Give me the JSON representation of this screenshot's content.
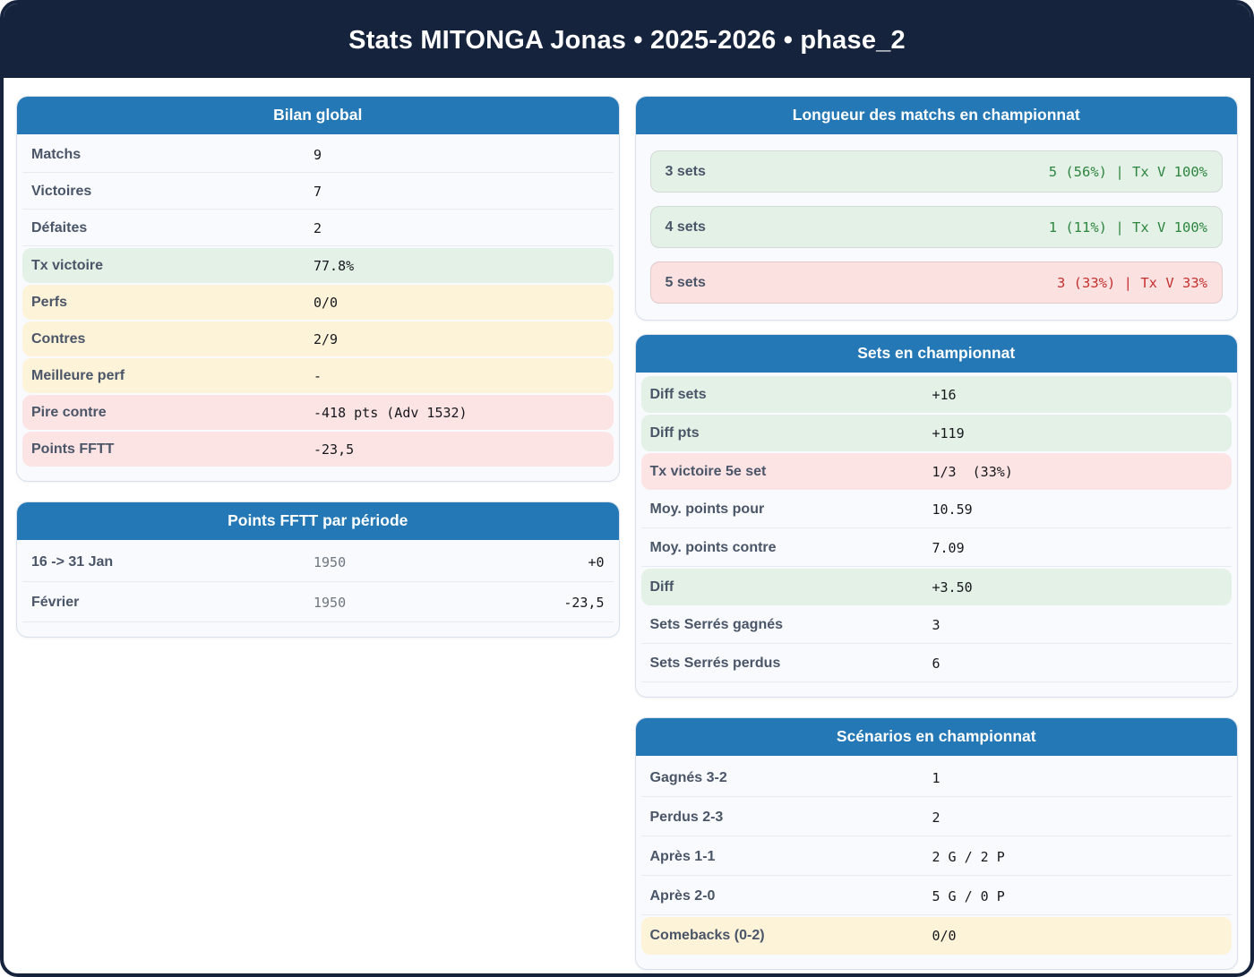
{
  "page_title": "Stats MITONGA Jonas • 2025-2026 • phase_2",
  "colors": {
    "frame_navy": "#16233c",
    "header_blue": "#2478b5",
    "green_bg": "#e3f1e6",
    "green_text": "#2e8540",
    "yellow_bg": "#fdf3d9",
    "pink_bg": "#fce4e4",
    "red_text": "#c53030"
  },
  "cards": {
    "bilan": {
      "title": "Bilan global",
      "rows": [
        {
          "label": "Matchs",
          "value": "9"
        },
        {
          "label": "Victoires",
          "value": "7"
        },
        {
          "label": "Défaites",
          "value": "2"
        },
        {
          "label": "Tx victoire",
          "value": "77.8%"
        },
        {
          "label": "Perfs",
          "value": "0/0"
        },
        {
          "label": "Contres",
          "value": "2/9"
        },
        {
          "label": "Meilleure perf",
          "value": "-"
        },
        {
          "label": "Pire contre",
          "value": "-418 pts (Adv 1532)"
        },
        {
          "label": "Points FFTT",
          "value": "-23,5"
        }
      ]
    },
    "periods": {
      "title": "Points FFTT par période",
      "rows": [
        {
          "label": "16 -> 31 Jan",
          "points": "1950",
          "delta": "+0"
        },
        {
          "label": "Février",
          "points": "1950",
          "delta": "-23,5"
        }
      ]
    },
    "match_length": {
      "title": "Longueur des matchs en championnat",
      "rows": [
        {
          "label": "3 sets",
          "value": "5 (56%) | Tx V 100%"
        },
        {
          "label": "4 sets",
          "value": "1 (11%) | Tx V 100%"
        },
        {
          "label": "5 sets",
          "value": "3 (33%) | Tx V 33%"
        }
      ]
    },
    "sets": {
      "title": "Sets en championnat",
      "rows": [
        {
          "label": "Diff sets",
          "value": "+16"
        },
        {
          "label": "Diff pts",
          "value": "+119"
        },
        {
          "label": "Tx victoire 5e set",
          "value": "1/3  (33%)"
        },
        {
          "label": "Moy. points pour",
          "value": "10.59"
        },
        {
          "label": "Moy. points contre",
          "value": "7.09"
        },
        {
          "label": "Diff",
          "value": "+3.50"
        },
        {
          "label": "Sets Serrés gagnés",
          "value": "3"
        },
        {
          "label": "Sets Serrés perdus",
          "value": "6"
        }
      ]
    },
    "scenarios": {
      "title": "Scénarios en championnat",
      "rows": [
        {
          "label": "Gagnés 3-2",
          "value": "1"
        },
        {
          "label": "Perdus 2-3",
          "value": "2"
        },
        {
          "label": "Après 1-1",
          "value": "2 G / 2 P"
        },
        {
          "label": "Après 2-0",
          "value": "5 G / 0 P"
        },
        {
          "label": "Comebacks (0-2)",
          "value": "0/0"
        }
      ]
    }
  }
}
